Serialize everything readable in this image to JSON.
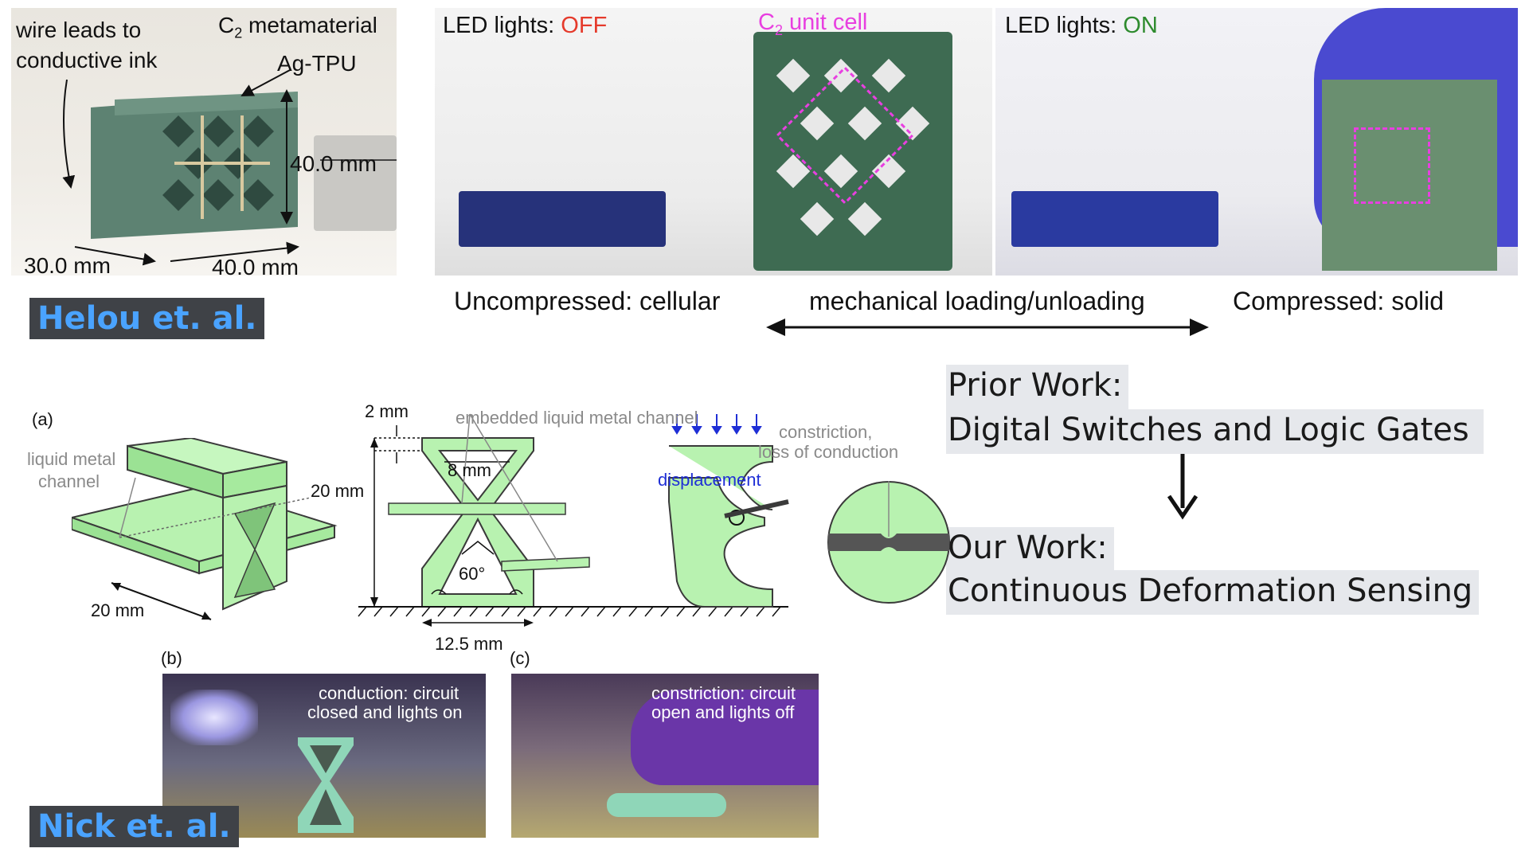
{
  "helou_panel": {
    "leads_label_line1": "wire leads to",
    "leads_label_line2": "conductive ink",
    "title_prefix": "C",
    "title_sub": "2",
    "title_suffix": " metamaterial",
    "agtpu_label": "Ag-TPU",
    "height_dim": "40.0 mm",
    "depth_dim": "30.0 mm",
    "width_dim": "40.0 mm",
    "badge": "Helou et. al."
  },
  "led_panel": {
    "off_prefix": "LED lights: ",
    "off_state": "OFF",
    "on_prefix": "LED lights: ",
    "on_state": "ON",
    "unit_prefix": "C",
    "unit_sub": "2",
    "unit_suffix": " unit cell",
    "caption_left": "Uncompressed: cellular",
    "caption_mid": "mechanical loading/unloading",
    "caption_right": "Compressed: solid"
  },
  "work_summary": {
    "prior_title": "Prior Work:",
    "prior_desc": "Digital Switches and Logic Gates",
    "our_title": "Our Work:",
    "our_desc": "Continuous Deformation Sensing"
  },
  "nick_diagram": {
    "panel_a": "(a)",
    "channel_label_1": "liquid metal",
    "channel_label_2": "channel",
    "dim_20_side": "20 mm",
    "dim_20_height": "20 mm",
    "dim_2": "2 mm",
    "dim_8": "8 mm",
    "angle": "60°",
    "dim_12_5": "12.5 mm",
    "embedded_label": "embedded liquid metal channel",
    "displacement": "displacement",
    "constriction_1": "constriction,",
    "constriction_2": "loss of conduction",
    "panel_b": "(b)",
    "panel_c": "(c)",
    "photo_b_line1": "conduction: circuit",
    "photo_b_line2": "closed and lights on",
    "photo_c_line1": "constriction: circuit",
    "photo_c_line2": "open and lights off",
    "badge": "Nick et. al."
  },
  "colors": {
    "off_red": "#e53a2b",
    "on_green": "#2e8b2e",
    "unit_magenta": "#e83fe0",
    "badge_blue": "#4aa3ff",
    "displacement_blue": "#1f2fd6",
    "green_material": "#b8f2b0"
  }
}
